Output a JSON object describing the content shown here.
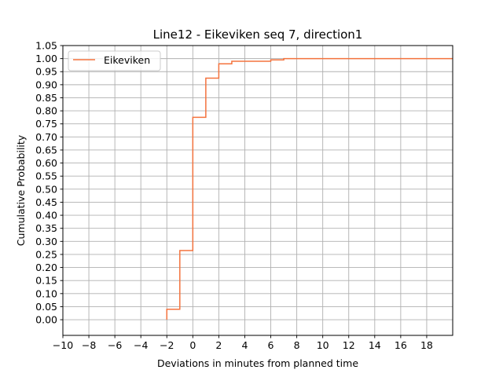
{
  "chart_data": {
    "type": "line",
    "drawstyle": "steps-post",
    "title": "Line12 - Eikeviken seq 7, direction1",
    "xlabel": "Deviations in minutes from planned time",
    "ylabel": "Cumulative Probability",
    "xlim": [
      -10,
      20
    ],
    "ylim": [
      -0.06,
      1.05
    ],
    "xticks": [
      -10,
      -8,
      -6,
      -4,
      -2,
      0,
      2,
      4,
      6,
      8,
      10,
      12,
      14,
      16,
      18
    ],
    "xtick_labels": [
      "−10",
      "−8",
      "−6",
      "−4",
      "−2",
      "0",
      "2",
      "4",
      "6",
      "8",
      "10",
      "12",
      "14",
      "16",
      "18"
    ],
    "yticks": [
      0,
      0.05,
      0.1,
      0.15,
      0.2,
      0.25,
      0.3,
      0.35,
      0.4,
      0.45,
      0.5,
      0.55,
      0.6,
      0.65,
      0.7,
      0.75,
      0.8,
      0.85,
      0.9,
      0.95,
      1.0,
      1.05
    ],
    "ytick_labels": [
      "0.00",
      "0.05",
      "0.10",
      "0.15",
      "0.20",
      "0.25",
      "0.30",
      "0.35",
      "0.40",
      "0.45",
      "0.50",
      "0.55",
      "0.60",
      "0.65",
      "0.70",
      "0.75",
      "0.80",
      "0.85",
      "0.90",
      "0.95",
      "1.00",
      "1.05"
    ],
    "grid": true,
    "legend_position": "top-left",
    "series": [
      {
        "name": "Eikeviken",
        "color": "#f4733e",
        "x": [
          -2,
          -1,
          0,
          1,
          2,
          3,
          6,
          7,
          20
        ],
        "y": [
          0.04,
          0.265,
          0.775,
          0.925,
          0.98,
          0.99,
          0.995,
          1.0,
          1.0
        ],
        "start_y": 0.0
      }
    ]
  }
}
